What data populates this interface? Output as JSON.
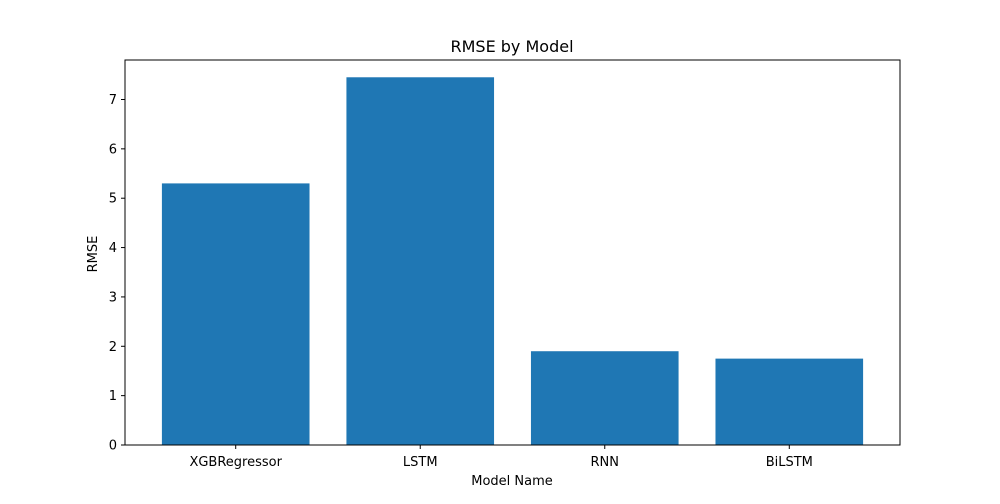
{
  "chart_data": {
    "type": "bar",
    "title": "RMSE by Model",
    "xlabel": "Model Name",
    "ylabel": "RMSE",
    "categories": [
      "XGBRegressor",
      "LSTM",
      "RNN",
      "BiLSTM"
    ],
    "values": [
      5.3,
      7.45,
      1.9,
      1.75
    ],
    "ylim": [
      0,
      7.8
    ],
    "yticks": [
      "0",
      "1",
      "2",
      "3",
      "4",
      "5",
      "6",
      "7"
    ],
    "bar_color": "#1f77b4",
    "grid": false,
    "legend": "none"
  }
}
